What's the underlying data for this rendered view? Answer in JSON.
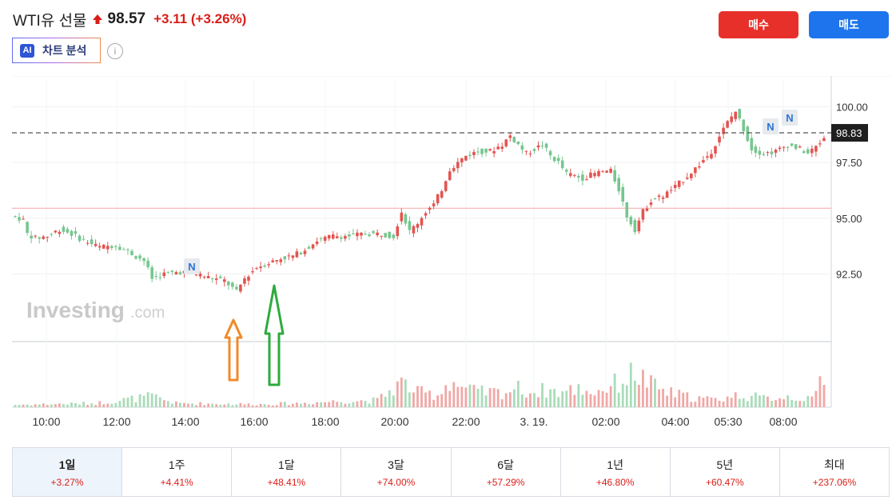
{
  "header": {
    "title": "WTI유 선물",
    "price": "98.57",
    "change": "+3.11 (+3.26%)",
    "direction_icon": "arrow-up-icon",
    "up_color": "#d91e18"
  },
  "ai_button": {
    "badge": "AI",
    "label": "차트 분석"
  },
  "info_icon": {
    "glyph": "i"
  },
  "buy_button": {
    "label": "매수",
    "color": "#e8302a"
  },
  "sell_button": {
    "label": "매도",
    "color": "#1d74ec"
  },
  "chart_data": {
    "type": "candlestick",
    "title": "",
    "xlabel": "",
    "ylabel": "",
    "ylim": [
      89.5,
      101.2
    ],
    "y_ticks": [
      "100.00",
      "97.50",
      "95.00",
      "92.50"
    ],
    "y_tick_values": [
      100.0,
      97.5,
      95.0,
      92.5
    ],
    "x_ticks": [
      "10:00",
      "12:00",
      "14:00",
      "16:00",
      "18:00",
      "20:00",
      "22:00",
      "3. 19.",
      "02:00",
      "04:00",
      "05:30",
      "08:00"
    ],
    "current_price_label": "98.83",
    "current_price_value": 98.83,
    "reference_level": 95.45,
    "watermark": "Investing.com",
    "news_markers": [
      "N",
      "N",
      "N"
    ],
    "annotations": [
      {
        "type": "arrow",
        "color": "orange",
        "direction": "up",
        "near": "15:30"
      },
      {
        "type": "arrow",
        "color": "green",
        "direction": "up",
        "near": "16:30"
      }
    ],
    "price_path": [
      [
        0,
        95.1
      ],
      [
        2,
        95.0
      ],
      [
        3,
        94.9
      ],
      [
        4,
        94.3
      ],
      [
        6,
        94.1
      ],
      [
        9,
        94.2
      ],
      [
        12,
        94.5
      ],
      [
        15,
        94.3
      ],
      [
        18,
        94.0
      ],
      [
        22,
        93.7
      ],
      [
        26,
        93.8
      ],
      [
        30,
        93.4
      ],
      [
        33,
        93.1
      ],
      [
        35,
        92.3
      ],
      [
        38,
        92.5
      ],
      [
        42,
        92.6
      ],
      [
        46,
        92.5
      ],
      [
        50,
        92.3
      ],
      [
        53,
        92.2
      ],
      [
        56,
        91.7
      ],
      [
        58,
        92.3
      ],
      [
        61,
        92.8
      ],
      [
        64,
        93.0
      ],
      [
        67,
        93.2
      ],
      [
        70,
        93.3
      ],
      [
        73,
        93.6
      ],
      [
        76,
        94.0
      ],
      [
        80,
        94.2
      ],
      [
        84,
        94.2
      ],
      [
        88,
        94.3
      ],
      [
        92,
        94.3
      ],
      [
        95,
        94.2
      ],
      [
        97,
        95.3
      ],
      [
        99,
        94.4
      ],
      [
        101,
        94.8
      ],
      [
        103,
        95.3
      ],
      [
        105,
        95.6
      ],
      [
        107,
        96.3
      ],
      [
        109,
        97.2
      ],
      [
        111,
        97.5
      ],
      [
        113,
        97.8
      ],
      [
        116,
        98.0
      ],
      [
        119,
        98.0
      ],
      [
        122,
        98.3
      ],
      [
        124,
        98.7
      ],
      [
        126,
        98.3
      ],
      [
        128,
        97.9
      ],
      [
        130,
        98.1
      ],
      [
        132,
        98.3
      ],
      [
        134,
        97.8
      ],
      [
        136,
        97.5
      ],
      [
        138,
        97.0
      ],
      [
        140,
        96.9
      ],
      [
        142,
        96.8
      ],
      [
        145,
        97.0
      ],
      [
        147,
        97.1
      ],
      [
        149,
        97.1
      ],
      [
        151,
        96.3
      ],
      [
        153,
        95.1
      ],
      [
        155,
        94.5
      ],
      [
        157,
        95.3
      ],
      [
        159,
        95.8
      ],
      [
        162,
        96.0
      ],
      [
        165,
        96.4
      ],
      [
        168,
        96.9
      ],
      [
        171,
        97.4
      ],
      [
        174,
        98.0
      ],
      [
        176,
        98.7
      ],
      [
        178,
        99.3
      ],
      [
        180,
        99.8
      ],
      [
        182,
        99.0
      ],
      [
        184,
        98.1
      ],
      [
        187,
        97.9
      ],
      [
        190,
        98.0
      ],
      [
        193,
        98.3
      ],
      [
        196,
        98.1
      ],
      [
        198,
        97.9
      ],
      [
        200,
        98.2
      ],
      [
        202,
        98.6
      ]
    ],
    "volume_profile": [
      [
        0,
        0.05
      ],
      [
        20,
        0.08
      ],
      [
        34,
        0.22
      ],
      [
        40,
        0.08
      ],
      [
        60,
        0.06
      ],
      [
        70,
        0.08
      ],
      [
        80,
        0.12
      ],
      [
        90,
        0.14
      ],
      [
        96,
        0.5
      ],
      [
        100,
        0.3
      ],
      [
        105,
        0.25
      ],
      [
        108,
        0.55
      ],
      [
        112,
        0.35
      ],
      [
        116,
        0.3
      ],
      [
        122,
        0.3
      ],
      [
        124,
        0.4
      ],
      [
        128,
        0.3
      ],
      [
        132,
        0.35
      ],
      [
        136,
        0.3
      ],
      [
        140,
        0.38
      ],
      [
        144,
        0.3
      ],
      [
        150,
        0.5
      ],
      [
        154,
        0.7
      ],
      [
        158,
        0.45
      ],
      [
        162,
        0.3
      ],
      [
        168,
        0.2
      ],
      [
        174,
        0.15
      ],
      [
        180,
        0.25
      ],
      [
        186,
        0.18
      ],
      [
        192,
        0.22
      ],
      [
        198,
        0.15
      ],
      [
        202,
        0.9
      ]
    ],
    "up_color": "#e35450",
    "down_color": "#76c68f",
    "grid": true
  },
  "periods": [
    {
      "label": "1일",
      "change": "+3.27%",
      "active": true
    },
    {
      "label": "1주",
      "change": "+4.41%"
    },
    {
      "label": "1달",
      "change": "+48.41%"
    },
    {
      "label": "3달",
      "change": "+74.00%"
    },
    {
      "label": "6달",
      "change": "+57.29%"
    },
    {
      "label": "1년",
      "change": "+46.80%"
    },
    {
      "label": "5년",
      "change": "+60.47%"
    },
    {
      "label": "최대",
      "change": "+237.06%"
    }
  ]
}
